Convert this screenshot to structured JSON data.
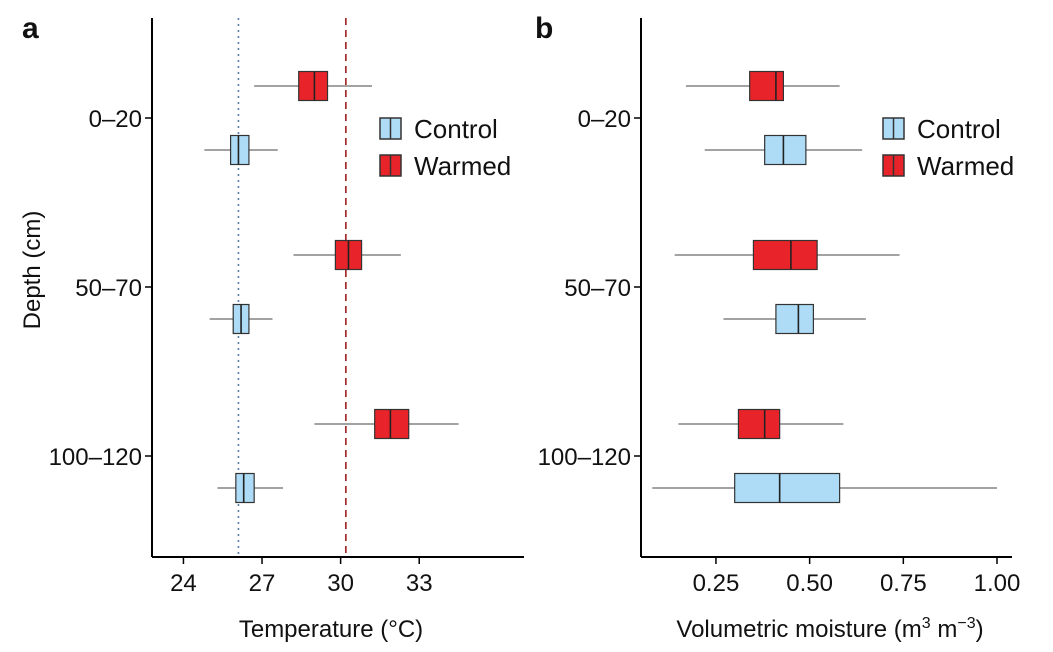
{
  "chart_data": [
    {
      "panel": "a",
      "type": "boxplot",
      "orientation": "horizontal",
      "xlabel": "Temperature (°C)",
      "ylabel": "Depth (cm)",
      "xlim": [
        22.8,
        37.0
      ],
      "xticks": [
        24,
        27,
        30,
        33
      ],
      "xtick_labels": [
        "24",
        "27",
        "30",
        "33"
      ],
      "categories": [
        "0–20",
        "50–70",
        "100–120"
      ],
      "legend": {
        "position": "right-upper",
        "entries": [
          {
            "name": "Control",
            "color": "#aedcf7"
          },
          {
            "name": "Warmed",
            "color": "#e8242a"
          }
        ]
      },
      "reference_lines": [
        {
          "series": "Control",
          "value": 26.1,
          "style": "dotted",
          "color": "#5b7fa8"
        },
        {
          "series": "Warmed",
          "value": 30.2,
          "style": "dashed",
          "color": "#a02020"
        }
      ],
      "series": [
        {
          "name": "Warmed",
          "color": "#e8242a",
          "boxes": [
            {
              "category": "0–20",
              "whisker_low": 26.7,
              "q1": 28.4,
              "median": 29.0,
              "q3": 29.5,
              "whisker_high": 31.2
            },
            {
              "category": "50–70",
              "whisker_low": 28.2,
              "q1": 29.8,
              "median": 30.3,
              "q3": 30.8,
              "whisker_high": 32.3
            },
            {
              "category": "100–120",
              "whisker_low": 29.0,
              "q1": 31.3,
              "median": 31.9,
              "q3": 32.6,
              "whisker_high": 34.5
            }
          ]
        },
        {
          "name": "Control",
          "color": "#aedcf7",
          "boxes": [
            {
              "category": "0–20",
              "whisker_low": 24.8,
              "q1": 25.8,
              "median": 26.1,
              "q3": 26.5,
              "whisker_high": 27.6
            },
            {
              "category": "50–70",
              "whisker_low": 25.0,
              "q1": 25.9,
              "median": 26.2,
              "q3": 26.5,
              "whisker_high": 27.4
            },
            {
              "category": "100–120",
              "whisker_low": 25.3,
              "q1": 26.0,
              "median": 26.3,
              "q3": 26.7,
              "whisker_high": 27.8
            }
          ]
        }
      ]
    },
    {
      "panel": "b",
      "type": "boxplot",
      "orientation": "horizontal",
      "xlabel": "Volumetric moisture (m3 m−3)",
      "xlabel_parts": {
        "prefix": "Volumetric moisture (m",
        "sup1": "3",
        "mid": " m",
        "sup2": "−3",
        "suffix": ")"
      },
      "ylabel": "",
      "xlim": [
        0.05,
        1.04
      ],
      "xticks": [
        0.25,
        0.5,
        0.75,
        1.0
      ],
      "xtick_labels": [
        "0.25",
        "0.50",
        "0.75",
        "1.00"
      ],
      "categories": [
        "0–20",
        "50–70",
        "100–120"
      ],
      "legend": {
        "position": "right-upper",
        "entries": [
          {
            "name": "Control",
            "color": "#aedcf7"
          },
          {
            "name": "Warmed",
            "color": "#e8242a"
          }
        ]
      },
      "series": [
        {
          "name": "Warmed",
          "color": "#e8242a",
          "boxes": [
            {
              "category": "0–20",
              "whisker_low": 0.17,
              "q1": 0.34,
              "median": 0.41,
              "q3": 0.43,
              "whisker_high": 0.58
            },
            {
              "category": "50–70",
              "whisker_low": 0.14,
              "q1": 0.35,
              "median": 0.45,
              "q3": 0.52,
              "whisker_high": 0.74
            },
            {
              "category": "100–120",
              "whisker_low": 0.15,
              "q1": 0.31,
              "median": 0.38,
              "q3": 0.42,
              "whisker_high": 0.59
            }
          ]
        },
        {
          "name": "Control",
          "color": "#aedcf7",
          "boxes": [
            {
              "category": "0–20",
              "whisker_low": 0.22,
              "q1": 0.38,
              "median": 0.43,
              "q3": 0.49,
              "whisker_high": 0.64
            },
            {
              "category": "50–70",
              "whisker_low": 0.27,
              "q1": 0.41,
              "median": 0.47,
              "q3": 0.51,
              "whisker_high": 0.65
            },
            {
              "category": "100–120",
              "whisker_low": 0.08,
              "q1": 0.3,
              "median": 0.42,
              "q3": 0.58,
              "whisker_high": 1.0
            }
          ]
        }
      ]
    }
  ]
}
